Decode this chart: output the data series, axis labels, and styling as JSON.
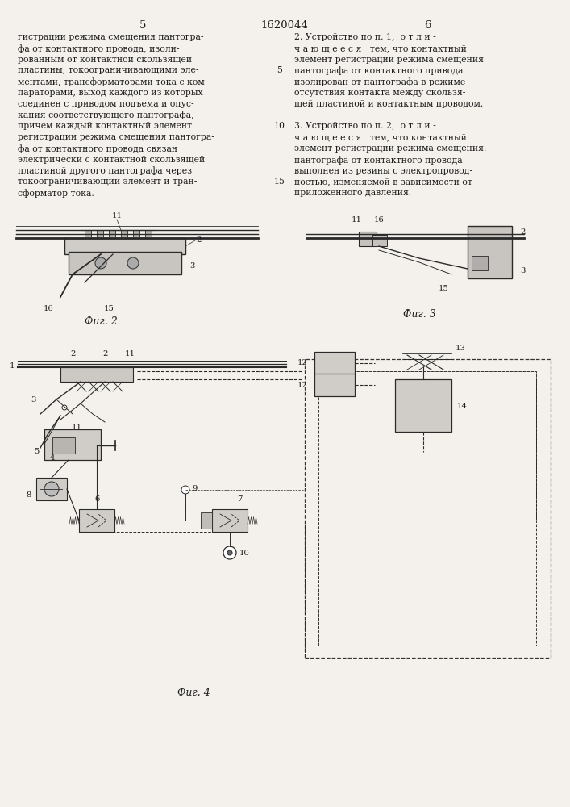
{
  "page_color": "#f4f1ec",
  "title": "1620044",
  "fig2_label": "Фиг. 2",
  "fig3_label": "Фиг. 3",
  "fig4_label": "Фиг. 4",
  "left_text": [
    "гистрации режима смещения пантогра-",
    "фа от контактного провода, изоли-",
    "рованным от контактной скользящей",
    "пластины, токоограничивающими эле-",
    "ментами, трансформаторами тока с ком-",
    "параторами, выход каждого из которых",
    "соединен с приводом подъема и опус-",
    "кания соответствующего пантографа,",
    "причем каждый контактный элемент",
    "регистрации режима смещения пантогра-",
    "фа от контактного провода связан",
    "электрически с контактной скользящей",
    "пластиной другого пантографа через",
    "токоограничивающий элемент и тран-",
    "сформатор тока."
  ],
  "right_text": [
    "2. Устройство по п. 1,  о т л и -",
    "ч а ю щ е е с я   тем, что контактный",
    "элемент регистрации режима смещения",
    "пантографа от контактного привода",
    "изолирован от пантографа в режиме",
    "отсутствия контакта между скользя-",
    "щей пластиной и контактным проводом.",
    "",
    "3. Устройство по п. 2,  о т л и -",
    "ч а ю щ е е с я   тем, что контактный",
    "элемент регистрации режима смещения.",
    "пантографа от контактного провода",
    "выполнен из резины с электропровод-",
    "ностью, изменяемой в зависимости от",
    "приложенного давления."
  ]
}
